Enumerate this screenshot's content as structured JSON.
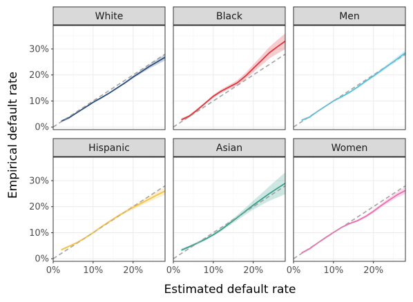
{
  "chart_data": {
    "type": "line",
    "xlabel": "Estimated default rate",
    "ylabel": "Empirical default rate",
    "xlim": [
      0,
      0.28
    ],
    "ylim": [
      -0.01,
      0.39
    ],
    "x_ticks": [
      0,
      0.1,
      0.2
    ],
    "x_tick_labels": [
      "0%",
      "10%",
      "20%"
    ],
    "y_ticks": [
      0,
      0.1,
      0.2,
      0.3
    ],
    "y_tick_labels": [
      "0%",
      "10%",
      "20%",
      "30%"
    ],
    "reference_line": "y = x (dashed, gray)",
    "layout": "facet grid 2 rows x 3 columns",
    "panels": [
      {
        "title": "White",
        "color": "#2b4c7e",
        "points": [
          [
            0.02,
            0.022
          ],
          [
            0.04,
            0.036
          ],
          [
            0.06,
            0.056
          ],
          [
            0.08,
            0.075
          ],
          [
            0.1,
            0.095
          ],
          [
            0.12,
            0.112
          ],
          [
            0.14,
            0.13
          ],
          [
            0.16,
            0.15
          ],
          [
            0.18,
            0.17
          ],
          [
            0.2,
            0.192
          ],
          [
            0.22,
            0.212
          ],
          [
            0.24,
            0.232
          ],
          [
            0.26,
            0.25
          ],
          [
            0.28,
            0.268
          ]
        ],
        "band": [
          0.004,
          0.004,
          0.003,
          0.003,
          0.003,
          0.003,
          0.003,
          0.003,
          0.004,
          0.005,
          0.006,
          0.008,
          0.01,
          0.012
        ]
      },
      {
        "title": "Black",
        "color": "#e0323c",
        "points": [
          [
            0.02,
            0.028
          ],
          [
            0.04,
            0.042
          ],
          [
            0.06,
            0.066
          ],
          [
            0.08,
            0.092
          ],
          [
            0.1,
            0.118
          ],
          [
            0.12,
            0.138
          ],
          [
            0.14,
            0.154
          ],
          [
            0.16,
            0.17
          ],
          [
            0.18,
            0.195
          ],
          [
            0.2,
            0.225
          ],
          [
            0.22,
            0.255
          ],
          [
            0.24,
            0.285
          ],
          [
            0.26,
            0.308
          ],
          [
            0.28,
            0.33
          ]
        ],
        "band": [
          0.006,
          0.005,
          0.005,
          0.005,
          0.006,
          0.007,
          0.008,
          0.01,
          0.012,
          0.015,
          0.018,
          0.022,
          0.026,
          0.03
        ]
      },
      {
        "title": "Men",
        "color": "#4ec3e0",
        "points": [
          [
            0.02,
            0.026
          ],
          [
            0.04,
            0.038
          ],
          [
            0.06,
            0.06
          ],
          [
            0.08,
            0.08
          ],
          [
            0.1,
            0.1
          ],
          [
            0.12,
            0.116
          ],
          [
            0.14,
            0.133
          ],
          [
            0.16,
            0.153
          ],
          [
            0.18,
            0.175
          ],
          [
            0.2,
            0.196
          ],
          [
            0.22,
            0.218
          ],
          [
            0.24,
            0.24
          ],
          [
            0.26,
            0.262
          ],
          [
            0.28,
            0.285
          ]
        ],
        "band": [
          0.004,
          0.004,
          0.003,
          0.003,
          0.003,
          0.003,
          0.003,
          0.003,
          0.004,
          0.005,
          0.006,
          0.007,
          0.009,
          0.011
        ]
      },
      {
        "title": "Hispanic",
        "color": "#f5c242",
        "points": [
          [
            0.02,
            0.034
          ],
          [
            0.04,
            0.048
          ],
          [
            0.06,
            0.062
          ],
          [
            0.08,
            0.08
          ],
          [
            0.1,
            0.1
          ],
          [
            0.12,
            0.122
          ],
          [
            0.14,
            0.142
          ],
          [
            0.16,
            0.162
          ],
          [
            0.18,
            0.18
          ],
          [
            0.2,
            0.197
          ],
          [
            0.22,
            0.213
          ],
          [
            0.24,
            0.229
          ],
          [
            0.26,
            0.245
          ],
          [
            0.28,
            0.26
          ]
        ],
        "band": [
          0.005,
          0.004,
          0.004,
          0.004,
          0.004,
          0.004,
          0.004,
          0.005,
          0.006,
          0.008,
          0.009,
          0.011,
          0.013,
          0.015
        ]
      },
      {
        "title": "Asian",
        "color": "#3a9e8c",
        "points": [
          [
            0.02,
            0.033
          ],
          [
            0.04,
            0.046
          ],
          [
            0.06,
            0.06
          ],
          [
            0.08,
            0.075
          ],
          [
            0.1,
            0.092
          ],
          [
            0.12,
            0.112
          ],
          [
            0.14,
            0.135
          ],
          [
            0.16,
            0.158
          ],
          [
            0.18,
            0.182
          ],
          [
            0.2,
            0.206
          ],
          [
            0.22,
            0.228
          ],
          [
            0.24,
            0.25
          ],
          [
            0.26,
            0.27
          ],
          [
            0.28,
            0.29
          ]
        ],
        "band": [
          0.006,
          0.005,
          0.005,
          0.005,
          0.005,
          0.006,
          0.008,
          0.01,
          0.013,
          0.017,
          0.022,
          0.028,
          0.035,
          0.042
        ]
      },
      {
        "title": "Women",
        "color": "#f06ab0",
        "points": [
          [
            0.02,
            0.022
          ],
          [
            0.04,
            0.038
          ],
          [
            0.06,
            0.06
          ],
          [
            0.08,
            0.081
          ],
          [
            0.1,
            0.101
          ],
          [
            0.12,
            0.12
          ],
          [
            0.14,
            0.135
          ],
          [
            0.16,
            0.146
          ],
          [
            0.18,
            0.162
          ],
          [
            0.2,
            0.182
          ],
          [
            0.22,
            0.205
          ],
          [
            0.24,
            0.226
          ],
          [
            0.26,
            0.246
          ],
          [
            0.28,
            0.262
          ]
        ],
        "band": [
          0.004,
          0.004,
          0.003,
          0.003,
          0.003,
          0.003,
          0.003,
          0.004,
          0.005,
          0.006,
          0.007,
          0.009,
          0.011,
          0.013
        ]
      }
    ]
  }
}
